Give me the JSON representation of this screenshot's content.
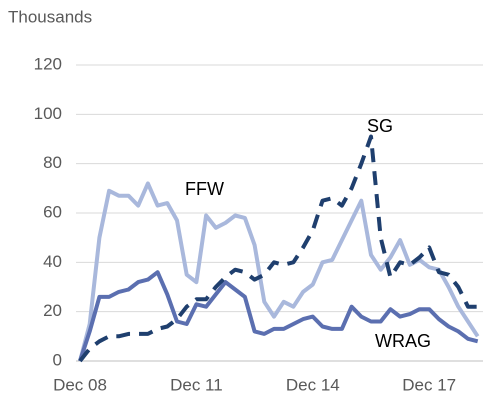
{
  "chart_data": {
    "type": "line",
    "unit_label": "Thousands",
    "categories": [
      "Dec 08",
      null,
      null,
      null,
      null,
      null,
      null,
      null,
      null,
      null,
      null,
      null,
      "Dec 11",
      null,
      null,
      null,
      null,
      null,
      null,
      null,
      null,
      null,
      null,
      null,
      "Dec 14",
      null,
      null,
      null,
      null,
      null,
      null,
      null,
      null,
      null,
      null,
      null,
      "Dec 17",
      null,
      null,
      null,
      null,
      null
    ],
    "series": [
      {
        "name": "FFW",
        "color": "#a9b8dc",
        "dashed": false,
        "values": [
          0,
          15,
          50,
          69,
          67,
          67,
          63,
          72,
          63,
          64,
          57,
          35,
          32,
          59,
          54,
          56,
          59,
          58,
          47,
          24,
          18,
          24,
          22,
          28,
          31,
          40,
          41,
          49,
          57,
          65,
          43,
          37,
          42,
          49,
          39,
          41,
          38,
          37,
          30,
          22,
          16,
          10
        ]
      },
      {
        "name": "WRAG",
        "color": "#5b6fb0",
        "dashed": false,
        "values": [
          0,
          12,
          26,
          26,
          28,
          29,
          32,
          33,
          36,
          27,
          16,
          15,
          23,
          22,
          27,
          32,
          29,
          26,
          12,
          11,
          13,
          13,
          15,
          17,
          18,
          14,
          13,
          13,
          22,
          18,
          16,
          16,
          21,
          18,
          19,
          21,
          21,
          17,
          14,
          12,
          9,
          8
        ]
      },
      {
        "name": "SG",
        "color": "#1f3f6e",
        "dashed": true,
        "values": [
          0,
          5,
          8,
          10,
          10,
          11,
          11,
          11,
          13,
          14,
          17,
          22,
          25,
          25,
          30,
          34,
          37,
          36,
          33,
          35,
          40,
          39,
          40,
          46,
          53,
          65,
          66,
          63,
          70,
          80,
          91,
          50,
          34,
          40,
          39,
          42,
          46,
          36,
          35,
          30,
          22,
          22
        ]
      }
    ],
    "ylim": [
      0,
      120
    ],
    "yticks": [
      0,
      20,
      40,
      60,
      80,
      100,
      120
    ],
    "grid": true
  }
}
